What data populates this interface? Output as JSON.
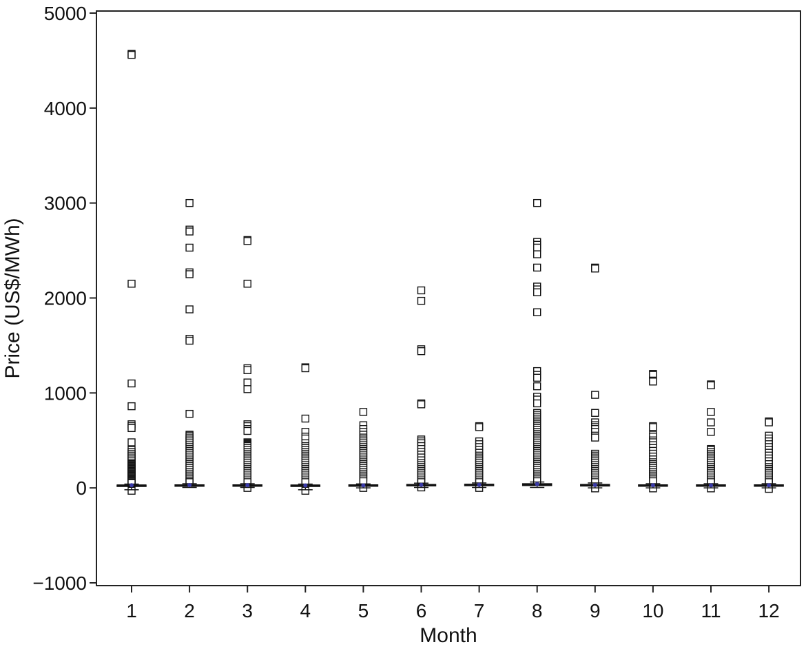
{
  "chart_data": {
    "type": "box",
    "xlabel": "Month",
    "ylabel": "Price (US$/MWh)",
    "categories": [
      "1",
      "2",
      "3",
      "4",
      "5",
      "6",
      "7",
      "8",
      "9",
      "10",
      "11",
      "12"
    ],
    "ylim": [
      -1000,
      5000
    ],
    "yticks": [
      -1000,
      0,
      1000,
      2000,
      3000,
      4000,
      5000
    ],
    "y_tick_labels": [
      "−1000",
      "0",
      "1000",
      "2000",
      "3000",
      "4000",
      "5000"
    ],
    "grid": false,
    "legend": "none",
    "colors": {
      "box": "#111111",
      "median": "#111111",
      "mean_marker": "#3a3aa8",
      "outlier": "#111111"
    },
    "boxes": [
      {
        "month": "1",
        "q1": 20,
        "median": 25,
        "q3": 30,
        "whisker_low": -20,
        "whisker_high": 40,
        "mean": 28
      },
      {
        "month": "2",
        "q1": 20,
        "median": 26,
        "q3": 32,
        "whisker_low": 5,
        "whisker_high": 45,
        "mean": 30
      },
      {
        "month": "3",
        "q1": 20,
        "median": 25,
        "q3": 32,
        "whisker_low": 5,
        "whisker_high": 45,
        "mean": 29
      },
      {
        "month": "4",
        "q1": 18,
        "median": 24,
        "q3": 30,
        "whisker_low": -20,
        "whisker_high": 40,
        "mean": 26
      },
      {
        "month": "5",
        "q1": 18,
        "median": 25,
        "q3": 32,
        "whisker_low": 0,
        "whisker_high": 42,
        "mean": 27
      },
      {
        "month": "6",
        "q1": 22,
        "median": 28,
        "q3": 36,
        "whisker_low": 5,
        "whisker_high": 50,
        "mean": 32
      },
      {
        "month": "7",
        "q1": 25,
        "median": 32,
        "q3": 38,
        "whisker_low": 5,
        "whisker_high": 52,
        "mean": 33
      },
      {
        "month": "8",
        "q1": 25,
        "median": 34,
        "q3": 44,
        "whisker_low": 5,
        "whisker_high": 62,
        "mean": 40
      },
      {
        "month": "9",
        "q1": 20,
        "median": 28,
        "q3": 36,
        "whisker_low": 0,
        "whisker_high": 52,
        "mean": 30
      },
      {
        "month": "10",
        "q1": 20,
        "median": 26,
        "q3": 32,
        "whisker_low": 0,
        "whisker_high": 45,
        "mean": 28
      },
      {
        "month": "11",
        "q1": 20,
        "median": 26,
        "q3": 32,
        "whisker_low": 0,
        "whisker_high": 45,
        "mean": 27
      },
      {
        "month": "12",
        "q1": 20,
        "median": 26,
        "q3": 32,
        "whisker_low": 0,
        "whisker_high": 45,
        "mean": 28
      }
    ],
    "outliers": [
      {
        "month": "1",
        "values": [
          4570,
          4560,
          2150,
          1100,
          860,
          670,
          650,
          630,
          480,
          400,
          380,
          360,
          340,
          320,
          300,
          280,
          260,
          250,
          240,
          230,
          220,
          210,
          200,
          190,
          180,
          170,
          160,
          150,
          140,
          130,
          120,
          110,
          100,
          90,
          80,
          70,
          60,
          50,
          -30
        ]
      },
      {
        "month": "2",
        "values": [
          3000,
          2720,
          2700,
          2530,
          2270,
          2250,
          1880,
          1570,
          1550,
          780,
          560,
          550,
          530,
          510,
          490,
          470,
          450,
          430,
          410,
          390,
          370,
          350,
          330,
          310,
          290,
          270,
          250,
          230,
          210,
          190,
          170,
          150,
          130,
          110,
          90,
          70,
          60
        ]
      },
      {
        "month": "3",
        "values": [
          2610,
          2600,
          2150,
          1260,
          1240,
          1110,
          1040,
          670,
          650,
          620,
          600,
          480,
          470,
          460,
          450,
          440,
          420,
          400,
          380,
          360,
          340,
          320,
          300,
          280,
          260,
          240,
          220,
          200,
          180,
          160,
          140,
          120,
          100,
          80,
          60,
          0
        ]
      },
      {
        "month": "4",
        "values": [
          1270,
          1260,
          730,
          590,
          540,
          520,
          470,
          440,
          420,
          400,
          380,
          360,
          340,
          320,
          300,
          280,
          260,
          240,
          220,
          200,
          180,
          160,
          140,
          120,
          100,
          80,
          60,
          -30
        ]
      },
      {
        "month": "5",
        "values": [
          800,
          660,
          620,
          590,
          560,
          530,
          510,
          490,
          470,
          450,
          430,
          410,
          390,
          370,
          350,
          330,
          310,
          290,
          270,
          250,
          230,
          210,
          190,
          170,
          150,
          130,
          110,
          90,
          70,
          0
        ]
      },
      {
        "month": "6",
        "values": [
          2080,
          1970,
          1460,
          1440,
          890,
          880,
          510,
          490,
          470,
          440,
          410,
          380,
          350,
          320,
          290,
          260,
          240,
          220,
          200,
          180,
          160,
          140,
          120,
          100,
          80,
          60,
          5
        ]
      },
      {
        "month": "7",
        "values": [
          650,
          640,
          490,
          460,
          430,
          400,
          370,
          340,
          320,
          300,
          280,
          260,
          240,
          220,
          200,
          180,
          160,
          140,
          120,
          100,
          80,
          60,
          0
        ]
      },
      {
        "month": "8",
        "values": [
          3000,
          2590,
          2560,
          2530,
          2460,
          2320,
          2120,
          2090,
          2060,
          1850,
          1230,
          1190,
          1160,
          1070,
          960,
          930,
          890,
          790,
          770,
          750,
          730,
          710,
          690,
          670,
          650,
          630,
          610,
          590,
          570,
          550,
          530,
          510,
          490,
          470,
          450,
          430,
          410,
          390,
          370,
          350,
          330,
          310,
          290,
          270,
          250,
          230,
          210,
          190,
          170,
          150,
          130,
          110,
          90,
          70
        ]
      },
      {
        "month": "9",
        "values": [
          2320,
          2310,
          980,
          790,
          690,
          660,
          640,
          620,
          590,
          550,
          530,
          360,
          340,
          320,
          300,
          280,
          260,
          240,
          220,
          200,
          180,
          160,
          140,
          120,
          100,
          80,
          60,
          -5
        ]
      },
      {
        "month": "10",
        "values": [
          1200,
          1190,
          1130,
          1120,
          650,
          640,
          560,
          540,
          500,
          480,
          450,
          420,
          390,
          360,
          330,
          300,
          270,
          250,
          230,
          210,
          190,
          170,
          150,
          130,
          110,
          90,
          70,
          -5
        ]
      },
      {
        "month": "11",
        "values": [
          1090,
          1080,
          800,
          690,
          590,
          410,
          400,
          380,
          360,
          340,
          320,
          300,
          280,
          260,
          240,
          220,
          200,
          180,
          160,
          140,
          120,
          100,
          80,
          60,
          -5
        ]
      },
      {
        "month": "12",
        "values": [
          700,
          690,
          550,
          520,
          490,
          460,
          430,
          400,
          370,
          340,
          310,
          280,
          250,
          220,
          200,
          180,
          160,
          140,
          120,
          100,
          80,
          60,
          -10
        ]
      }
    ]
  }
}
